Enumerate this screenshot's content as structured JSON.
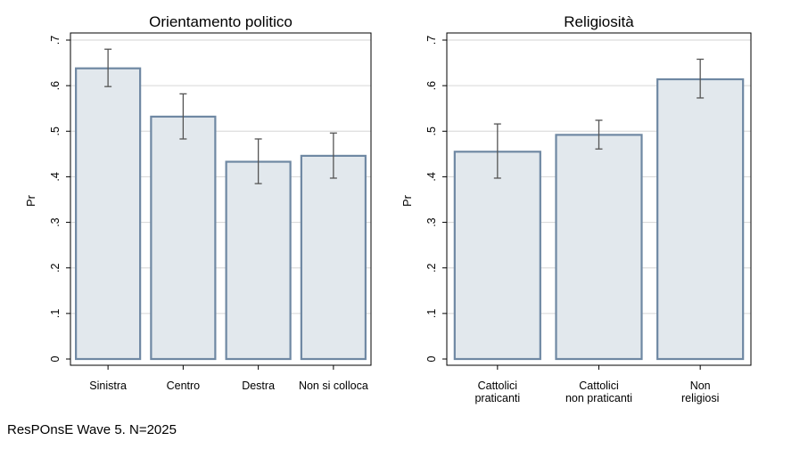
{
  "note": "ResPOnsE Wave 5. N=2025",
  "chart_data": [
    {
      "type": "bar",
      "title": "Orientamento politico",
      "ylabel": "Pr",
      "ylim": [
        0,
        0.7
      ],
      "yticks": [
        0,
        0.1,
        0.2,
        0.3,
        0.4,
        0.5,
        0.6,
        0.7
      ],
      "ytick_labels": [
        "0",
        ".1",
        ".2",
        ".3",
        ".4",
        ".5",
        ".6",
        ".7"
      ],
      "grid": true,
      "categories": [
        [
          "Sinistra"
        ],
        [
          "Centro"
        ],
        [
          "Destra"
        ],
        [
          "Non si colloca"
        ]
      ],
      "values": [
        0.638,
        0.532,
        0.433,
        0.446
      ],
      "ci_low": [
        0.598,
        0.483,
        0.385,
        0.397
      ],
      "ci_high": [
        0.68,
        0.582,
        0.483,
        0.496
      ],
      "colors": {
        "bar_fill": "#e2e8ed",
        "bar_stroke": "#6f88a3",
        "error_bar": "#555555",
        "grid": "#d6d6d6"
      }
    },
    {
      "type": "bar",
      "title": "Religiosità",
      "ylabel": "Pr",
      "ylim": [
        0,
        0.7
      ],
      "yticks": [
        0,
        0.1,
        0.2,
        0.3,
        0.4,
        0.5,
        0.6,
        0.7
      ],
      "ytick_labels": [
        "0",
        ".1",
        ".2",
        ".3",
        ".4",
        ".5",
        ".6",
        ".7"
      ],
      "grid": true,
      "categories": [
        [
          "Cattolici",
          "praticanti"
        ],
        [
          "Cattolici",
          "non praticanti"
        ],
        [
          "Non",
          "religiosi"
        ]
      ],
      "values": [
        0.455,
        0.492,
        0.614
      ],
      "ci_low": [
        0.397,
        0.461,
        0.573
      ],
      "ci_high": [
        0.516,
        0.524,
        0.658
      ],
      "colors": {
        "bar_fill": "#e2e8ed",
        "bar_stroke": "#6f88a3",
        "error_bar": "#555555",
        "grid": "#d6d6d6"
      }
    }
  ]
}
